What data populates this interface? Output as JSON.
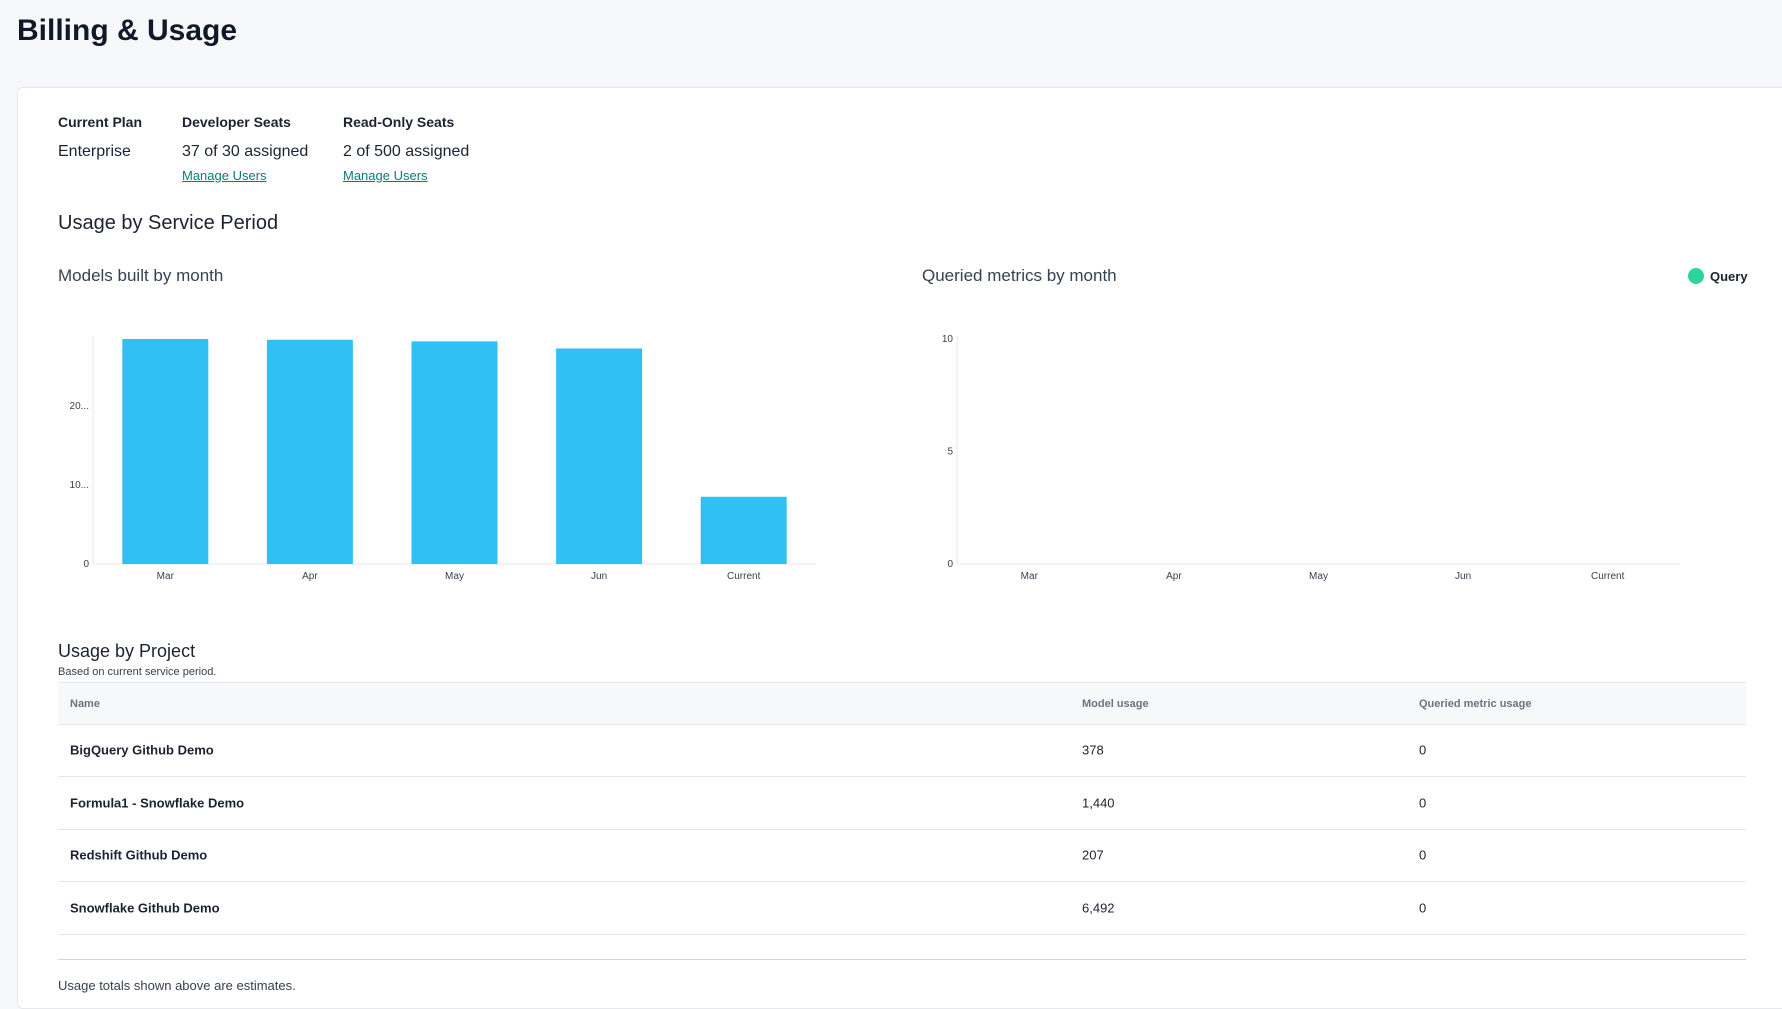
{
  "page": {
    "title": "Billing & Usage"
  },
  "plan": {
    "current_plan_label": "Current Plan",
    "current_plan_value": "Enterprise",
    "dev_seats_label": "Developer Seats",
    "dev_seats_value": "37 of 30 assigned",
    "dev_manage": "Manage Users",
    "ro_seats_label": "Read-Only Seats",
    "ro_seats_value": "2 of 500 assigned",
    "ro_manage": "Manage Users"
  },
  "usage_section": {
    "title": "Usage by Service Period"
  },
  "chart_data": [
    {
      "type": "bar",
      "title": "Models built by month",
      "categories": [
        "Mar",
        "Apr",
        "May",
        "Jun",
        "Current"
      ],
      "values": [
        28500,
        28400,
        28200,
        27300,
        8517
      ],
      "yticks": [
        "0",
        "10...",
        "20..."
      ],
      "ytick_values": [
        0,
        10000,
        20000
      ],
      "ylim": [
        0,
        28500
      ],
      "color": "#31c0f4",
      "grid": false
    },
    {
      "type": "bar",
      "title": "Queried metrics by month",
      "categories": [
        "Mar",
        "Apr",
        "May",
        "Jun",
        "Current"
      ],
      "series": [
        {
          "name": "Query",
          "values": [
            0,
            0,
            0,
            0,
            0
          ]
        }
      ],
      "yticks": [
        "0",
        "5",
        "10"
      ],
      "ytick_values": [
        0,
        5,
        10
      ],
      "ylim": [
        0,
        10
      ],
      "color": "#2ad49b",
      "legend": "top-right",
      "grid": false
    }
  ],
  "project_section": {
    "title": "Usage by Project",
    "subtitle": "Based on current service period."
  },
  "table": {
    "headers": [
      "Name",
      "Model usage",
      "Queried metric usage"
    ],
    "rows": [
      {
        "name": "BigQuery Github Demo",
        "model": "378",
        "queried": "0"
      },
      {
        "name": "Formula1 - Snowflake Demo",
        "model": "1,440",
        "queried": "0"
      },
      {
        "name": "Redshift Github Demo",
        "model": "207",
        "queried": "0"
      },
      {
        "name": "Snowflake Github Demo",
        "model": "6,492",
        "queried": "0"
      }
    ]
  },
  "footer": {
    "note": "Usage totals shown above are estimates."
  }
}
